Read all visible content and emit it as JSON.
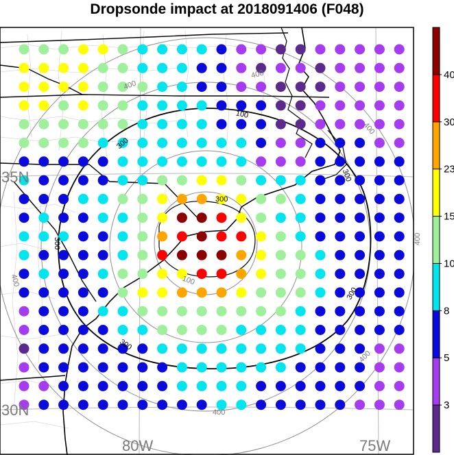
{
  "title": "Dropsonde impact at 2018091406 (F048)",
  "map": {
    "lat_labels": [
      "35N",
      "30N"
    ],
    "lon_labels": [
      "80W",
      "75W"
    ],
    "contours_black": [
      "100",
      "300",
      "300",
      "300",
      "300",
      "300",
      "300",
      "300"
    ],
    "contours_gray": [
      "100",
      "400",
      "400",
      "400",
      "400",
      "400",
      "400",
      "400"
    ]
  },
  "colorbar": {
    "labels": [
      "40",
      "30",
      "23",
      "15",
      "10",
      "8",
      "5",
      "3"
    ],
    "colors": [
      "#5b2a8c",
      "#a53cf0",
      "#0a0adc",
      "#00e5ee",
      "#9ef09a",
      "#ffff00",
      "#ffa500",
      "#ff0000",
      "#8b0000"
    ]
  },
  "dot_levels": {
    "0": "#5b2a8c",
    "1": "#a53cf0",
    "2": "#0a0adc",
    "3": "#00e5ee",
    "4": "#9ef09a",
    "5": "#ffff00",
    "6": "#ffa500",
    "7": "#ff0000",
    "8": "#8b0000"
  },
  "grid_rows": [
    "44455433332110011111",
    "55554433322101101111",
    "55554443322110001111",
    "55454433332220011111",
    "44444433332220011111",
    "44443333333321122211",
    "22222333333311122222",
    "32222334455433322222",
    "22233445665544322222",
    "23223345887543322222",
    "33322346787754322222",
    "32222347888654432222",
    "23223445577654432222",
    "22222455666544432222",
    "12223344444444322222",
    "12222334444333322222",
    "02222223333333322211",
    "12222222333333222211",
    "11222222333322222211",
    "12222222223322222111"
  ]
}
